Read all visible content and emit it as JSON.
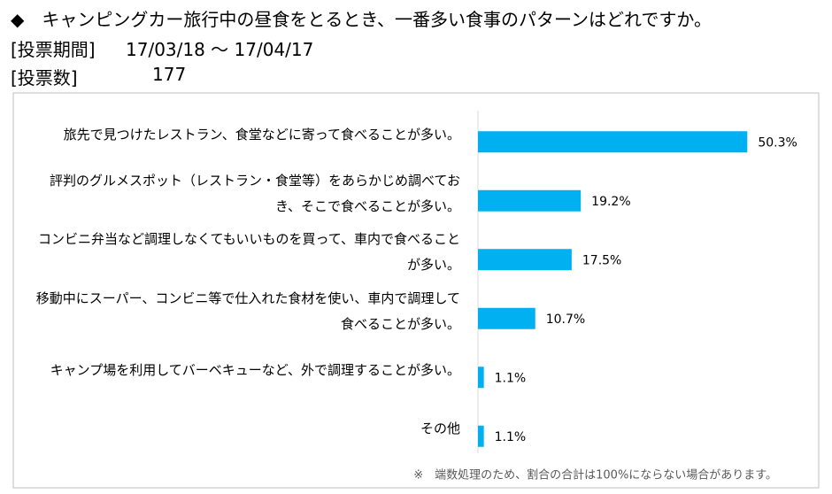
{
  "header": {
    "title": "◆　キャンピングカー旅行中の昼食をとるとき、一番多い食事のパターンはどれですか。",
    "period_label": "[投票期間]",
    "period": "17/03/18 ～ 17/04/17",
    "votes_label": "[投票数]",
    "votes": 177
  },
  "chart_data": {
    "type": "bar",
    "orientation": "horizontal",
    "categories": [
      "旅先で見つけたレストラン、食堂などに寄って食べることが多い。",
      "評判のグルメスポット（レストラン・食堂等）をあらかじめ調べておき、そこで食べることが多い。",
      "コンビニ弁当など調理しなくてもいいものを買って、車内で食べることが多い。",
      "移動中にスーパー、コンビニ等で仕入れた食材を使い、車内で調理して食べることが多い。",
      "キャンプ場を利用してバーベキューなど、外で調理することが多い。",
      "その他"
    ],
    "values": [
      50.3,
      19.2,
      17.5,
      10.7,
      1.1,
      1.1
    ],
    "value_labels": [
      "50.3%",
      "19.2%",
      "17.5%",
      "10.7%",
      "1.1%",
      "1.1%"
    ],
    "color": "#00b0f0",
    "xlim": [
      0,
      60
    ],
    "note": "※　端数処理のため、割合の合計は100%にならない場合があります。"
  }
}
